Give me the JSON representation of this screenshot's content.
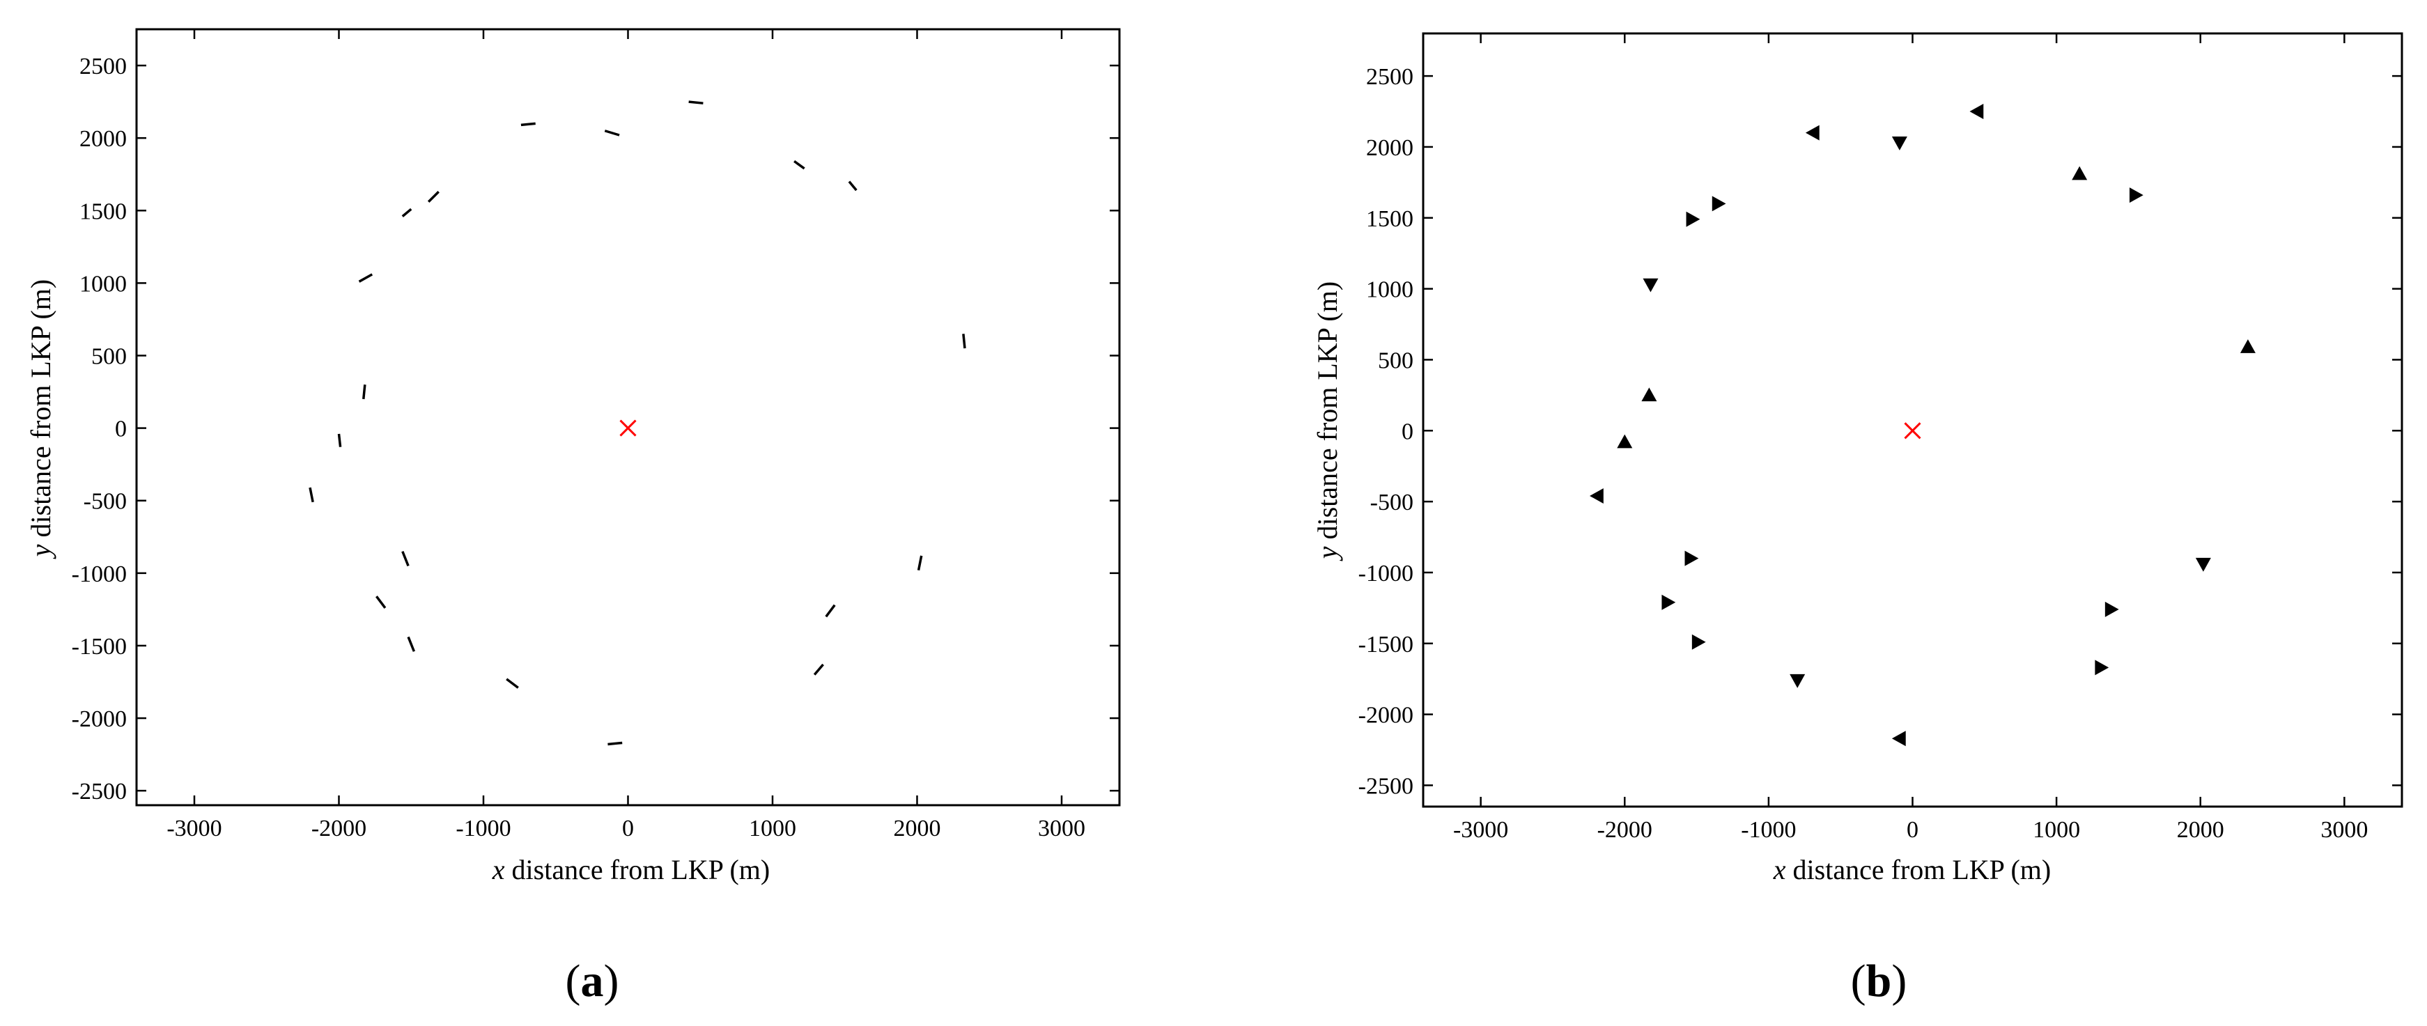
{
  "chart_data": [
    {
      "type": "scatter",
      "panel_label_parts": [
        "(",
        "a",
        ")"
      ],
      "xlabel_var": "x",
      "xlabel_rest": " distance from LKP (m)",
      "ylabel_var": "y",
      "ylabel_rest": " distance from LKP (m)",
      "xlim": [
        -3400,
        3400
      ],
      "ylim": [
        -2600,
        2750
      ],
      "xticks": [
        -3000,
        -2000,
        -1000,
        0,
        1000,
        2000,
        3000
      ],
      "yticks": [
        -2500,
        -2000,
        -1500,
        -1000,
        -500,
        0,
        500,
        1000,
        1500,
        2000,
        2500
      ],
      "marker_style": "short line segments",
      "origin_marker": {
        "x": 0,
        "y": 0,
        "symbol": "x",
        "color": "#ff0000"
      },
      "segments": [
        {
          "x1": -740,
          "y1": 2090,
          "x2": -640,
          "y2": 2100
        },
        {
          "x1": -160,
          "y1": 2050,
          "x2": -60,
          "y2": 2020
        },
        {
          "x1": 420,
          "y1": 2250,
          "x2": 520,
          "y2": 2240
        },
        {
          "x1": 1150,
          "y1": 1840,
          "x2": 1220,
          "y2": 1790
        },
        {
          "x1": 1530,
          "y1": 1700,
          "x2": 1580,
          "y2": 1640
        },
        {
          "x1": -1560,
          "y1": 1460,
          "x2": -1500,
          "y2": 1510
        },
        {
          "x1": -1380,
          "y1": 1560,
          "x2": -1310,
          "y2": 1630
        },
        {
          "x1": -1860,
          "y1": 1010,
          "x2": -1770,
          "y2": 1060
        },
        {
          "x1": 2320,
          "y1": 650,
          "x2": 2330,
          "y2": 550
        },
        {
          "x1": -1830,
          "y1": 200,
          "x2": -1820,
          "y2": 300
        },
        {
          "x1": -2000,
          "y1": -40,
          "x2": -1990,
          "y2": -130
        },
        {
          "x1": -2200,
          "y1": -410,
          "x2": -2180,
          "y2": -510
        },
        {
          "x1": -1560,
          "y1": -850,
          "x2": -1520,
          "y2": -950
        },
        {
          "x1": 2030,
          "y1": -880,
          "x2": 2010,
          "y2": -980
        },
        {
          "x1": -1740,
          "y1": -1160,
          "x2": -1680,
          "y2": -1240
        },
        {
          "x1": 1430,
          "y1": -1220,
          "x2": 1370,
          "y2": -1300
        },
        {
          "x1": -1520,
          "y1": -1440,
          "x2": -1480,
          "y2": -1540
        },
        {
          "x1": 1350,
          "y1": -1630,
          "x2": 1290,
          "y2": -1700
        },
        {
          "x1": -840,
          "y1": -1730,
          "x2": -760,
          "y2": -1790
        },
        {
          "x1": -140,
          "y1": -2180,
          "x2": -40,
          "y2": -2170
        }
      ]
    },
    {
      "type": "scatter",
      "panel_label_parts": [
        "(",
        "b",
        ")"
      ],
      "xlabel_var": "x",
      "xlabel_rest": " distance from LKP (m)",
      "ylabel_var": "y",
      "ylabel_rest": " distance from LKP (m)",
      "xlim": [
        -3400,
        3400
      ],
      "ylim": [
        -2650,
        2800
      ],
      "xticks": [
        -3000,
        -2000,
        -1000,
        0,
        1000,
        2000,
        3000
      ],
      "yticks": [
        -2500,
        -2000,
        -1500,
        -1000,
        -500,
        0,
        500,
        1000,
        1500,
        2000,
        2500
      ],
      "marker_style": "filled triangles",
      "origin_marker": {
        "x": 0,
        "y": 0,
        "symbol": "x",
        "color": "#ff0000"
      },
      "points": [
        {
          "x": -690,
          "y": 2100,
          "dir": "left"
        },
        {
          "x": -90,
          "y": 2030,
          "dir": "down"
        },
        {
          "x": 450,
          "y": 2250,
          "dir": "left"
        },
        {
          "x": 1160,
          "y": 1810,
          "dir": "up"
        },
        {
          "x": 1550,
          "y": 1660,
          "dir": "right"
        },
        {
          "x": -1350,
          "y": 1600,
          "dir": "right"
        },
        {
          "x": -1530,
          "y": 1490,
          "dir": "right"
        },
        {
          "x": -1820,
          "y": 1030,
          "dir": "down"
        },
        {
          "x": 2330,
          "y": 590,
          "dir": "up"
        },
        {
          "x": -1830,
          "y": 250,
          "dir": "up"
        },
        {
          "x": -2000,
          "y": -80,
          "dir": "up"
        },
        {
          "x": -2190,
          "y": -460,
          "dir": "left"
        },
        {
          "x": -1540,
          "y": -900,
          "dir": "right"
        },
        {
          "x": 2020,
          "y": -940,
          "dir": "down"
        },
        {
          "x": -1700,
          "y": -1210,
          "dir": "right"
        },
        {
          "x": 1380,
          "y": -1260,
          "dir": "right"
        },
        {
          "x": -1490,
          "y": -1490,
          "dir": "right"
        },
        {
          "x": 1310,
          "y": -1670,
          "dir": "right"
        },
        {
          "x": -800,
          "y": -1760,
          "dir": "down"
        },
        {
          "x": -90,
          "y": -2170,
          "dir": "left"
        }
      ]
    }
  ]
}
